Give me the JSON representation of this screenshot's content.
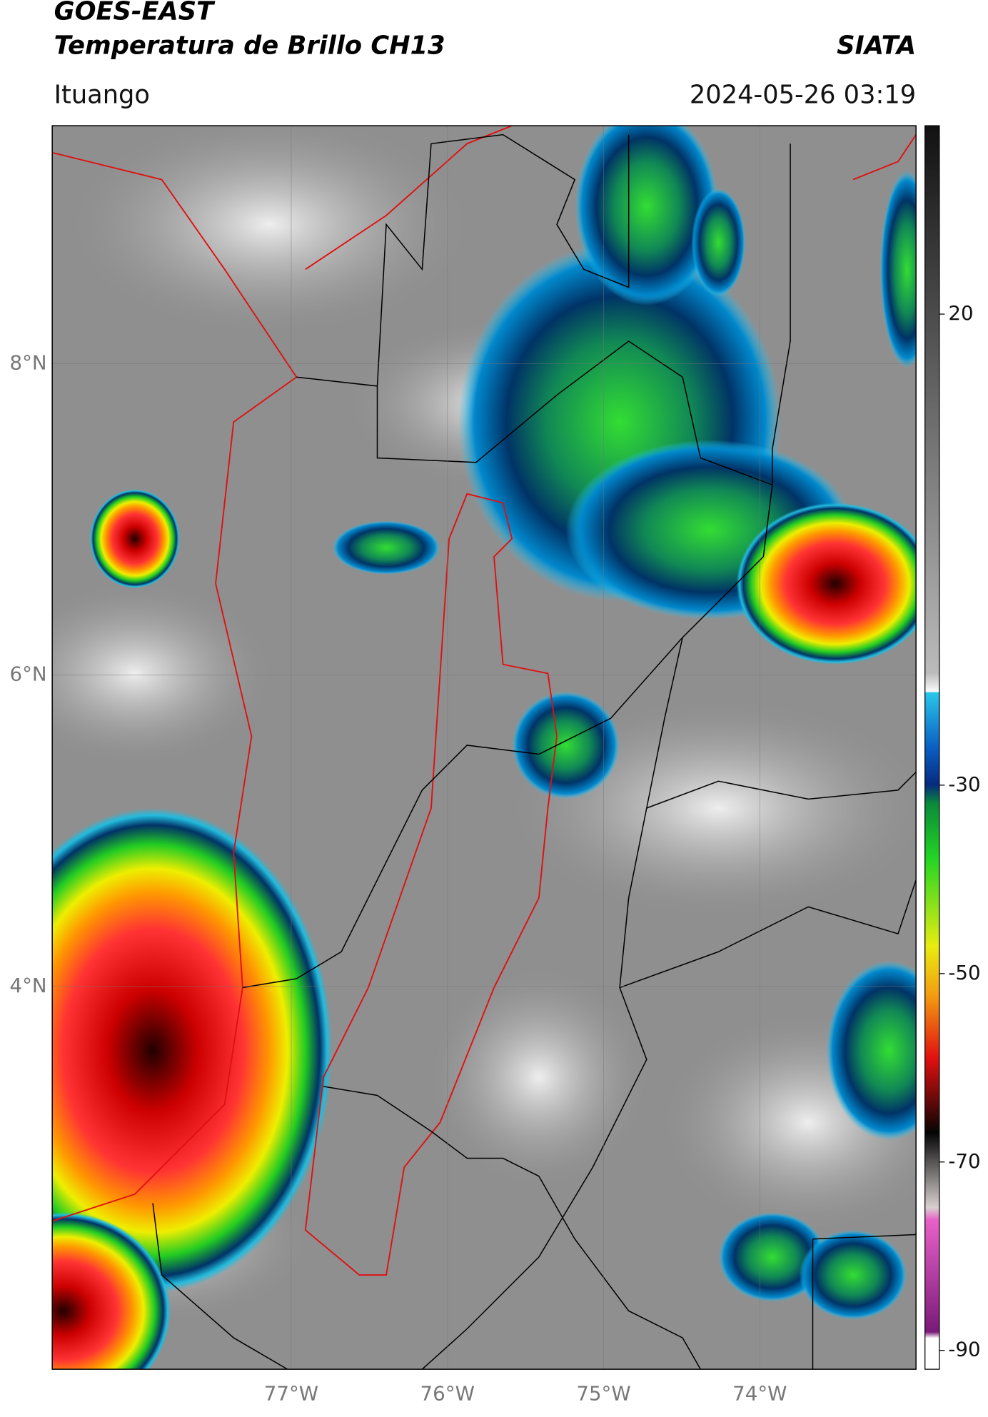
{
  "header": {
    "title_line1": "GOES-EAST",
    "title_line2": "Temperatura de Brillo CH13",
    "org": "SIATA",
    "location": "Ituango",
    "datetime": "2024-05-26 03:19"
  },
  "map": {
    "xlim": [
      -78.53,
      -73.0
    ],
    "ylim": [
      1.54,
      9.53
    ],
    "lat_ticks": [
      {
        "value": 8,
        "label": "8°N"
      },
      {
        "value": 6,
        "label": "6°N"
      },
      {
        "value": 4,
        "label": "4°N"
      }
    ],
    "lon_ticks": [
      {
        "value": -77,
        "label": "77°W"
      },
      {
        "value": -76,
        "label": "76°W"
      },
      {
        "value": -75,
        "label": "75°W"
      },
      {
        "value": -74,
        "label": "74°W"
      }
    ]
  },
  "colorbar": {
    "vlim": [
      -92,
      40
    ],
    "ticks": [
      20,
      -30,
      -50,
      -70,
      -90
    ]
  }
}
